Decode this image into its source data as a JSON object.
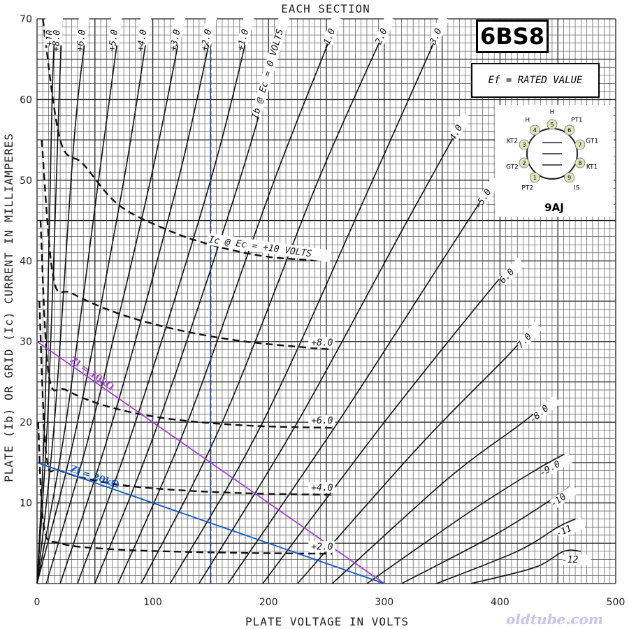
{
  "chart_data": {
    "type": "line",
    "title": "EACH SECTION",
    "xlabel": "PLATE VOLTAGE IN VOLTS",
    "ylabel": "PLATE (Ib) OR GRID (Ic) CURRENT IN MILLIAMPERES",
    "xlim": [
      0,
      500
    ],
    "ylim": [
      0,
      70
    ],
    "x_ticks": [
      "0",
      "100",
      "200",
      "300",
      "400",
      "500"
    ],
    "y_ticks": [
      "10",
      "20",
      "30",
      "40",
      "50",
      "60",
      "70"
    ],
    "grid": true,
    "plate_curves": [
      {
        "label": "+10",
        "points": [
          [
            0,
            0
          ],
          [
            7,
            22
          ],
          [
            13,
            60
          ],
          [
            16,
            70
          ]
        ]
      },
      {
        "label": "+8.0",
        "points": [
          [
            0,
            0
          ],
          [
            10,
            23
          ],
          [
            19,
            60
          ],
          [
            22,
            70
          ]
        ]
      },
      {
        "label": "+6.0",
        "points": [
          [
            0,
            0
          ],
          [
            15,
            20
          ],
          [
            32,
            55
          ],
          [
            44,
            70
          ]
        ]
      },
      {
        "label": "+5.0",
        "points": [
          [
            0,
            0
          ],
          [
            25,
            20
          ],
          [
            55,
            52
          ],
          [
            72,
            70
          ]
        ]
      },
      {
        "label": "+4.0",
        "points": [
          [
            0,
            0
          ],
          [
            35,
            20
          ],
          [
            75,
            50
          ],
          [
            97,
            70
          ]
        ]
      },
      {
        "label": "+3.0",
        "points": [
          [
            8,
            0
          ],
          [
            48,
            20
          ],
          [
            98,
            50
          ],
          [
            126,
            70
          ]
        ]
      },
      {
        "label": "+2.0",
        "points": [
          [
            20,
            0
          ],
          [
            65,
            20
          ],
          [
            122,
            50
          ],
          [
            153,
            70
          ]
        ]
      },
      {
        "label": "+1.0",
        "points": [
          [
            35,
            0
          ],
          [
            85,
            20
          ],
          [
            150,
            50
          ],
          [
            185,
            70
          ]
        ]
      },
      {
        "label": "Ib @ Ec = 0 VOLTS",
        "points": [
          [
            50,
            0
          ],
          [
            105,
            20
          ],
          [
            175,
            50
          ],
          [
            215,
            70
          ]
        ]
      },
      {
        "label": "-1.0",
        "points": [
          [
            70,
            0
          ],
          [
            130,
            20
          ],
          [
            205,
            50
          ],
          [
            260,
            70
          ]
        ]
      },
      {
        "label": "-2.0",
        "points": [
          [
            90,
            0
          ],
          [
            160,
            20
          ],
          [
            243,
            50
          ],
          [
            305,
            70
          ]
        ]
      },
      {
        "label": "-3.0",
        "points": [
          [
            115,
            0
          ],
          [
            195,
            20
          ],
          [
            290,
            50
          ],
          [
            352,
            70
          ]
        ]
      },
      {
        "label": "-4.0",
        "points": [
          [
            140,
            0
          ],
          [
            225,
            20
          ],
          [
            320,
            45
          ],
          [
            370,
            58
          ]
        ]
      },
      {
        "label": "-5.0",
        "points": [
          [
            165,
            0
          ],
          [
            260,
            20
          ],
          [
            350,
            40
          ],
          [
            395,
            50
          ]
        ]
      },
      {
        "label": "-6.0",
        "points": [
          [
            195,
            0
          ],
          [
            300,
            20
          ],
          [
            395,
            37
          ],
          [
            415,
            40
          ]
        ]
      },
      {
        "label": "-7.0",
        "points": [
          [
            225,
            0
          ],
          [
            330,
            17
          ],
          [
            405,
            28
          ],
          [
            430,
            32
          ]
        ]
      },
      {
        "label": "-8.0",
        "points": [
          [
            255,
            0
          ],
          [
            355,
            13
          ],
          [
            420,
            20
          ],
          [
            445,
            23
          ]
        ]
      },
      {
        "label": "-9.0",
        "points": [
          [
            285,
            0
          ],
          [
            375,
            9
          ],
          [
            430,
            14
          ],
          [
            455,
            16
          ]
        ]
      },
      {
        "label": "-10",
        "points": [
          [
            315,
            0
          ],
          [
            395,
            6
          ],
          [
            440,
            10
          ],
          [
            460,
            12
          ]
        ]
      },
      {
        "label": "-11",
        "points": [
          [
            345,
            0
          ],
          [
            415,
            4
          ],
          [
            450,
            7
          ],
          [
            465,
            8
          ]
        ]
      },
      {
        "label": "-12",
        "points": [
          [
            375,
            0
          ],
          [
            430,
            2
          ],
          [
            455,
            4
          ],
          [
            470,
            4
          ]
        ]
      }
    ],
    "grid_current_curves": [
      {
        "label": "+10",
        "points": [
          [
            5,
            70
          ],
          [
            20,
            55
          ],
          [
            40,
            52
          ],
          [
            70,
            47
          ],
          [
            110,
            44
          ],
          [
            150,
            42
          ],
          [
            200,
            40.5
          ],
          [
            255,
            40
          ]
        ]
      },
      {
        "label": "+8.0",
        "points": [
          [
            4,
            55
          ],
          [
            14,
            38
          ],
          [
            30,
            36
          ],
          [
            70,
            33.5
          ],
          [
            120,
            31.5
          ],
          [
            180,
            30
          ],
          [
            255,
            29
          ]
        ]
      },
      {
        "label": "+6.0",
        "points": [
          [
            3,
            45
          ],
          [
            10,
            26
          ],
          [
            25,
            24
          ],
          [
            60,
            22
          ],
          [
            110,
            20.5
          ],
          [
            180,
            19.6
          ],
          [
            255,
            19.3
          ]
        ]
      },
      {
        "label": "+4.0",
        "points": [
          [
            2,
            35
          ],
          [
            8,
            16
          ],
          [
            20,
            14
          ],
          [
            60,
            12.5
          ],
          [
            110,
            11.7
          ],
          [
            180,
            11.2
          ],
          [
            255,
            11
          ]
        ]
      },
      {
        "label": "+2.0",
        "points": [
          [
            1,
            20
          ],
          [
            6,
            7
          ],
          [
            20,
            5
          ],
          [
            60,
            4.3
          ],
          [
            110,
            4
          ],
          [
            180,
            3.8
          ],
          [
            255,
            3.7
          ]
        ]
      }
    ],
    "grid_current_label": "Ic @ Ec = +10 VOLTS",
    "load_lines": [
      {
        "name": "Zl = 10kΩ",
        "color": "#a23fd6",
        "points": [
          [
            0,
            30
          ],
          [
            300,
            0
          ]
        ]
      },
      {
        "name": "Zl = 20kΩ",
        "color": "#1157c9",
        "points": [
          [
            0,
            15
          ],
          [
            300,
            0
          ]
        ]
      }
    ],
    "marker_line": {
      "x": 150,
      "color": "#1a3fa8"
    }
  },
  "tube": {
    "name": "6BS8",
    "heater_note": "Ef = RATED VALUE",
    "base_name": "9AJ",
    "pins": [
      {
        "num": "1",
        "label": "PT2"
      },
      {
        "num": "2",
        "label": "GT2"
      },
      {
        "num": "3",
        "label": "KT2"
      },
      {
        "num": "4",
        "label": "H"
      },
      {
        "num": "5",
        "label": "H"
      },
      {
        "num": "6",
        "label": "PT1"
      },
      {
        "num": "7",
        "label": "GT1"
      },
      {
        "num": "8",
        "label": "KT1"
      },
      {
        "num": "9",
        "label": "IS"
      }
    ]
  },
  "watermark": "oldtube.com",
  "colors": {
    "grid": "#444444",
    "curve": "#111111",
    "pin_fill": "#d8e8b8"
  }
}
